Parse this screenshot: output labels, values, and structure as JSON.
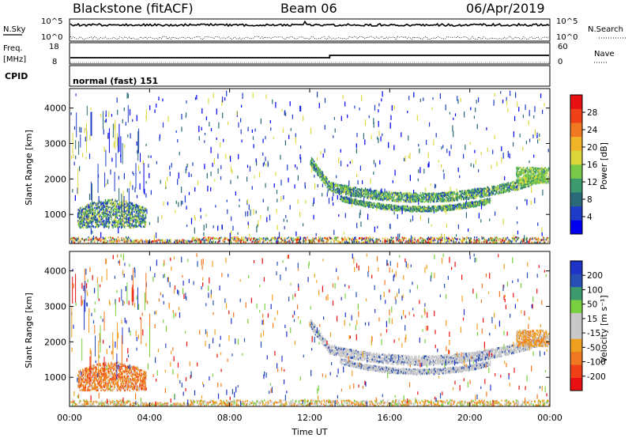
{
  "header": {
    "station": "Blackstone (fitACF)",
    "beam": "Beam 06",
    "date": "06/Apr/2019"
  },
  "summary_panels": {
    "nsky_label": "N.Sky",
    "nsky_tick_top": "10^5",
    "nsky_tick_bottom": "10^0",
    "nsearch_label": "N.Search",
    "freq_label": "Freq.",
    "freq_unit": "[MHz]",
    "freq_tick_top": "18",
    "freq_tick_bottom": "8",
    "nave_label": "Nave",
    "nave_tick_top": "60",
    "nave_tick_bottom": "0",
    "cpid_label": "CPID",
    "cpid_value": "normal (fast) 151"
  },
  "chart_data": [
    {
      "type": "heatmap",
      "name": "power",
      "ylabel": "Slant Range [km]",
      "yticks": [
        1000,
        2000,
        3000,
        4000
      ],
      "ylim": [
        180,
        4550
      ],
      "xlim": [
        0,
        24
      ],
      "colorbar_label": "Power [dB]",
      "colorbar_ticks": [
        "28",
        "24",
        "20",
        "16",
        "12",
        "8",
        "4"
      ],
      "colorbar_colors": [
        "#0000f0",
        "#1e3cc8",
        "#2a6a78",
        "#3c9a6e",
        "#78c84a",
        "#dcd83c",
        "#f0b428",
        "#f07820",
        "#f04018",
        "#e81010"
      ]
    },
    {
      "type": "heatmap",
      "name": "velocity",
      "ylabel": "Slant Range [km]",
      "yticks": [
        1000,
        2000,
        3000,
        4000
      ],
      "ylim": [
        180,
        4550
      ],
      "xlim": [
        0,
        24
      ],
      "xlabel": "Time UT",
      "xticks": [
        "00:00",
        "04:00",
        "08:00",
        "12:00",
        "16:00",
        "20:00",
        "00:00"
      ],
      "colorbar_label": "Velocity [m s⁻¹]",
      "colorbar_ticks": [
        "200",
        "100",
        "50",
        "15",
        "-15",
        "-50",
        "-100",
        "-200"
      ],
      "colorbar_colors": [
        "#e81010",
        "#f04018",
        "#f07820",
        "#f0a020",
        "#c8c8c8",
        "#c8c8c8",
        "#78d040",
        "#3c9a6e",
        "#2850b4",
        "#1e32c8"
      ]
    }
  ]
}
